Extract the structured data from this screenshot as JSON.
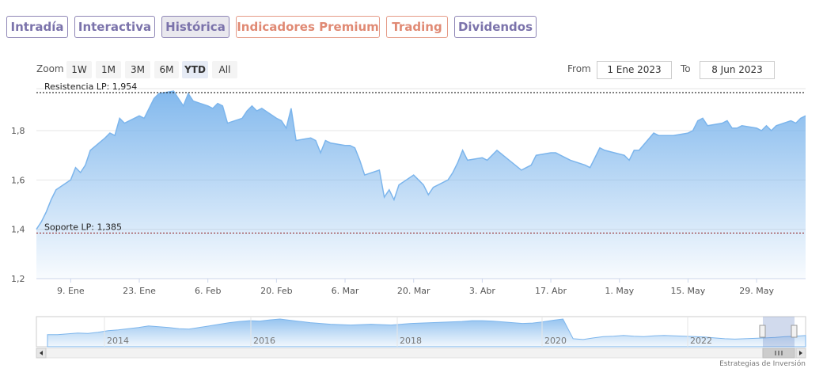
{
  "tabs": [
    {
      "label": "Intradía",
      "style": "purple"
    },
    {
      "label": "Interactiva",
      "style": "purple"
    },
    {
      "label": "Histórica",
      "style": "purple",
      "active": true
    },
    {
      "label": "Indicadores Premium",
      "style": "orange"
    },
    {
      "label": "Trading",
      "style": "orange"
    },
    {
      "label": "Dividendos",
      "style": "purple"
    }
  ],
  "zoom": {
    "label": "Zoom",
    "buttons": [
      "1W",
      "1M",
      "3M",
      "6M",
      "YTD",
      "All"
    ],
    "selected": "YTD"
  },
  "range": {
    "from_label": "From",
    "from_value": "1 Ene 2023",
    "to_label": "To",
    "to_value": "8 Jun 2023"
  },
  "credit": "Estrategias de Inversión",
  "colors": {
    "line": "#7cb5ec",
    "resistance": "#000000",
    "support": "#8b1a1a",
    "tab_purple": "#7b73ab",
    "tab_orange": "#e08a74"
  },
  "chart_data": {
    "type": "area",
    "ylim": [
      1.2,
      1.97
    ],
    "y_ticks": [
      "1,2",
      "1,4",
      "1,6",
      "1,8"
    ],
    "x_ticks": [
      "9. Ene",
      "23. Ene",
      "6. Feb",
      "20. Feb",
      "6. Mar",
      "20. Mar",
      "3. Abr",
      "17. Abr",
      "1. May",
      "15. May",
      "29. May"
    ],
    "resistance": {
      "label": "Resistencia LP: 1,954",
      "value": 1.954
    },
    "support": {
      "label": "Soporte LP: 1,385",
      "value": 1.385
    },
    "x": [
      "2023-01-02",
      "2023-01-03",
      "2023-01-04",
      "2023-01-05",
      "2023-01-06",
      "2023-01-09",
      "2023-01-10",
      "2023-01-11",
      "2023-01-12",
      "2023-01-13",
      "2023-01-16",
      "2023-01-17",
      "2023-01-18",
      "2023-01-19",
      "2023-01-20",
      "2023-01-23",
      "2023-01-24",
      "2023-01-25",
      "2023-01-26",
      "2023-01-27",
      "2023-01-30",
      "2023-01-31",
      "2023-02-01",
      "2023-02-02",
      "2023-02-03",
      "2023-02-06",
      "2023-02-07",
      "2023-02-08",
      "2023-02-09",
      "2023-02-10",
      "2023-02-13",
      "2023-02-14",
      "2023-02-15",
      "2023-02-16",
      "2023-02-17",
      "2023-02-20",
      "2023-02-21",
      "2023-02-22",
      "2023-02-23",
      "2023-02-24",
      "2023-02-27",
      "2023-02-28",
      "2023-03-01",
      "2023-03-02",
      "2023-03-03",
      "2023-03-06",
      "2023-03-07",
      "2023-03-08",
      "2023-03-09",
      "2023-03-10",
      "2023-03-13",
      "2023-03-14",
      "2023-03-15",
      "2023-03-16",
      "2023-03-17",
      "2023-03-20",
      "2023-03-21",
      "2023-03-22",
      "2023-03-23",
      "2023-03-24",
      "2023-03-27",
      "2023-03-28",
      "2023-03-29",
      "2023-03-30",
      "2023-03-31",
      "2023-04-03",
      "2023-04-04",
      "2023-04-05",
      "2023-04-06",
      "2023-04-11",
      "2023-04-12",
      "2023-04-13",
      "2023-04-14",
      "2023-04-17",
      "2023-04-18",
      "2023-04-19",
      "2023-04-20",
      "2023-04-21",
      "2023-04-24",
      "2023-04-25",
      "2023-04-26",
      "2023-04-27",
      "2023-04-28",
      "2023-05-02",
      "2023-05-03",
      "2023-05-04",
      "2023-05-05",
      "2023-05-08",
      "2023-05-09",
      "2023-05-10",
      "2023-05-11",
      "2023-05-12",
      "2023-05-15",
      "2023-05-16",
      "2023-05-17",
      "2023-05-18",
      "2023-05-19",
      "2023-05-22",
      "2023-05-23",
      "2023-05-24",
      "2023-05-25",
      "2023-05-26",
      "2023-05-29",
      "2023-05-30",
      "2023-05-31",
      "2023-06-01",
      "2023-06-02",
      "2023-06-05",
      "2023-06-06",
      "2023-06-07",
      "2023-06-08"
    ],
    "values": [
      1.4,
      1.43,
      1.47,
      1.52,
      1.56,
      1.6,
      1.65,
      1.63,
      1.66,
      1.72,
      1.77,
      1.79,
      1.78,
      1.85,
      1.83,
      1.86,
      1.85,
      1.89,
      1.93,
      1.95,
      1.96,
      1.93,
      1.9,
      1.95,
      1.92,
      1.9,
      1.89,
      1.91,
      1.9,
      1.83,
      1.85,
      1.88,
      1.9,
      1.88,
      1.89,
      1.85,
      1.84,
      1.81,
      1.89,
      1.76,
      1.77,
      1.76,
      1.71,
      1.76,
      1.75,
      1.74,
      1.74,
      1.73,
      1.68,
      1.62,
      1.64,
      1.53,
      1.56,
      1.52,
      1.58,
      1.62,
      1.6,
      1.58,
      1.54,
      1.57,
      1.6,
      1.63,
      1.67,
      1.72,
      1.68,
      1.69,
      1.68,
      1.7,
      1.72,
      1.64,
      1.65,
      1.66,
      1.7,
      1.71,
      1.71,
      1.7,
      1.69,
      1.68,
      1.66,
      1.65,
      1.69,
      1.73,
      1.72,
      1.7,
      1.68,
      1.72,
      1.72,
      1.79,
      1.78,
      1.78,
      1.78,
      1.78,
      1.79,
      1.8,
      1.84,
      1.85,
      1.82,
      1.83,
      1.84,
      1.81,
      1.81,
      1.82,
      1.81,
      1.8,
      1.82,
      1.8,
      1.82,
      1.84,
      1.83,
      1.85,
      1.86
    ]
  },
  "navigator": {
    "labels": [
      "2014",
      "2016",
      "2018",
      "2020",
      "2022"
    ],
    "series": [
      0.6,
      0.6,
      0.62,
      0.64,
      0.63,
      0.66,
      0.7,
      0.72,
      0.75,
      0.78,
      0.82,
      0.8,
      0.78,
      0.75,
      0.74,
      0.78,
      0.82,
      0.86,
      0.9,
      0.93,
      0.95,
      0.94,
      0.97,
      0.99,
      0.96,
      0.93,
      0.9,
      0.88,
      0.86,
      0.85,
      0.84,
      0.85,
      0.86,
      0.85,
      0.84,
      0.86,
      0.88,
      0.89,
      0.9,
      0.91,
      0.92,
      0.93,
      0.95,
      0.95,
      0.94,
      0.92,
      0.9,
      0.88,
      0.89,
      0.92,
      0.96,
      0.99,
      0.5,
      0.48,
      0.52,
      0.55,
      0.56,
      0.58,
      0.56,
      0.55,
      0.57,
      0.58,
      0.57,
      0.56,
      0.55,
      0.54,
      0.52,
      0.5,
      0.49,
      0.5,
      0.51,
      0.52,
      0.53,
      0.55,
      0.56,
      0.58
    ]
  }
}
